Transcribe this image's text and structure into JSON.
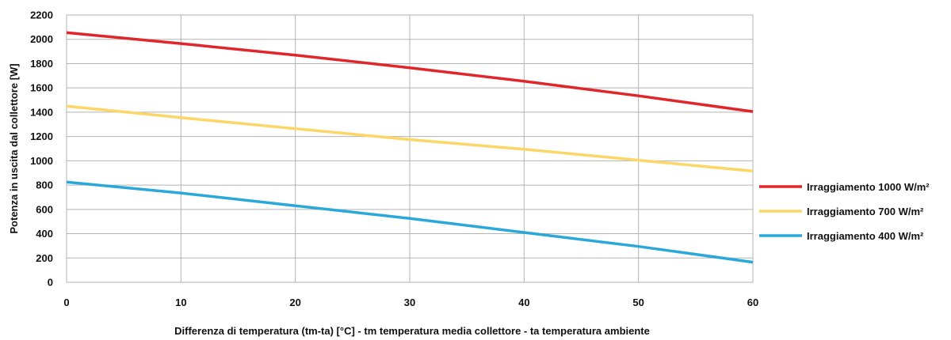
{
  "chart_data": {
    "type": "line",
    "xlabel": "Differenza di temperatura (tm-ta) [°C] - tm temperatura media collettore - ta temperatura ambiente",
    "ylabel": "Potenza in uscita dal collettore [W]",
    "xlim": [
      0,
      60
    ],
    "ylim": [
      0,
      2200
    ],
    "xticks": [
      0,
      10,
      20,
      30,
      40,
      50,
      60
    ],
    "yticks": [
      0,
      200,
      400,
      600,
      800,
      1000,
      1200,
      1400,
      1600,
      1800,
      2000,
      2200
    ],
    "grid": true,
    "legend_position": "right",
    "x": [
      0,
      10,
      20,
      30,
      40,
      50,
      60
    ],
    "series": [
      {
        "name": "Irraggiamento 1000 W/m²",
        "color": "#e0262a",
        "values": [
          2055,
          1965,
          1870,
          1765,
          1655,
          1535,
          1405
        ]
      },
      {
        "name": "Irraggiamento 700 W/m²",
        "color": "#fcd667",
        "values": [
          1450,
          1355,
          1265,
          1175,
          1095,
          1005,
          915
        ]
      },
      {
        "name": "Irraggiamento 400 W/m²",
        "color": "#2aa8da",
        "values": [
          825,
          735,
          630,
          525,
          410,
          295,
          165
        ]
      }
    ]
  }
}
